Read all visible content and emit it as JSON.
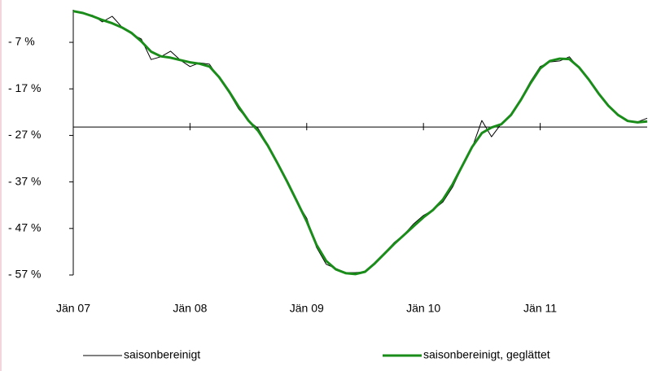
{
  "chart_data": {
    "type": "line",
    "categories": [
      "Jän 07",
      null,
      null,
      null,
      null,
      null,
      null,
      null,
      null,
      null,
      null,
      null,
      "Jän 08",
      null,
      null,
      null,
      null,
      null,
      null,
      null,
      null,
      null,
      null,
      null,
      "Jän 09",
      null,
      null,
      null,
      null,
      null,
      null,
      null,
      null,
      null,
      null,
      null,
      "Jän 10",
      null,
      null,
      null,
      null,
      null,
      null,
      null,
      null,
      null,
      null,
      null,
      "Jän 11",
      null,
      null,
      null,
      null,
      null,
      null,
      null,
      null,
      null,
      null,
      null
    ],
    "series": [
      {
        "name": "saisonbereinigt",
        "color": "#000000",
        "values": [
          -0.3,
          -0.7,
          -1.2,
          -2.6,
          -1.4,
          -3.7,
          -5.2,
          -6.3,
          -10.7,
          -10.1,
          -8.9,
          -10.8,
          -12.2,
          -11.4,
          -11.7,
          -14.7,
          -17.8,
          -21.3,
          -23.8,
          -25.5,
          -29.0,
          -32.9,
          -36.7,
          -41.3,
          -44.8,
          -51.0,
          -54.7,
          -55.6,
          -56.5,
          -56.5,
          -56.3,
          -54.7,
          -52.3,
          -50.0,
          -48.3,
          -46.0,
          -44.2,
          -43.0,
          -41.3,
          -38.1,
          -33.7,
          -29.7,
          -23.8,
          -27.3,
          -24.5,
          -22.4,
          -19.2,
          -15.4,
          -12.2,
          -11.2,
          -11.0,
          -10.1,
          -12.6,
          -15.0,
          -18.0,
          -20.6,
          -22.7,
          -23.8,
          -24.1,
          -23.3
        ]
      },
      {
        "name": "saisonbereinigt, geglättet",
        "color": "#1a8c1a",
        "values": [
          -0.3,
          -0.7,
          -1.4,
          -2.2,
          -2.9,
          -3.8,
          -5.0,
          -6.8,
          -9.0,
          -10.0,
          -10.3,
          -10.8,
          -11.3,
          -11.6,
          -12.2,
          -14.5,
          -17.5,
          -20.8,
          -23.8,
          -26.0,
          -29.2,
          -33.0,
          -37.0,
          -41.2,
          -45.5,
          -50.5,
          -54.0,
          -55.8,
          -56.6,
          -56.8,
          -56.3,
          -54.5,
          -52.4,
          -50.3,
          -48.4,
          -46.5,
          -44.6,
          -43.0,
          -40.8,
          -37.5,
          -33.5,
          -29.5,
          -26.5,
          -25.3,
          -24.6,
          -22.6,
          -19.4,
          -15.8,
          -12.6,
          -11.0,
          -10.5,
          -10.6,
          -12.4,
          -15.0,
          -18.0,
          -20.6,
          -22.6,
          -23.9,
          -24.2,
          -24.0
        ]
      }
    ],
    "ylim": [
      -57,
      0
    ],
    "yticks": [
      {
        "value": -7,
        "label": "- 7 %"
      },
      {
        "value": -17,
        "label": "- 17 %"
      },
      {
        "value": -27,
        "label": "- 27 %"
      },
      {
        "value": -37,
        "label": "- 37 %"
      },
      {
        "value": -47,
        "label": "- 47 %"
      },
      {
        "value": -57,
        "label": "- 57 %"
      }
    ],
    "x_axis_crossing": -25.2,
    "legend": "bottom"
  }
}
